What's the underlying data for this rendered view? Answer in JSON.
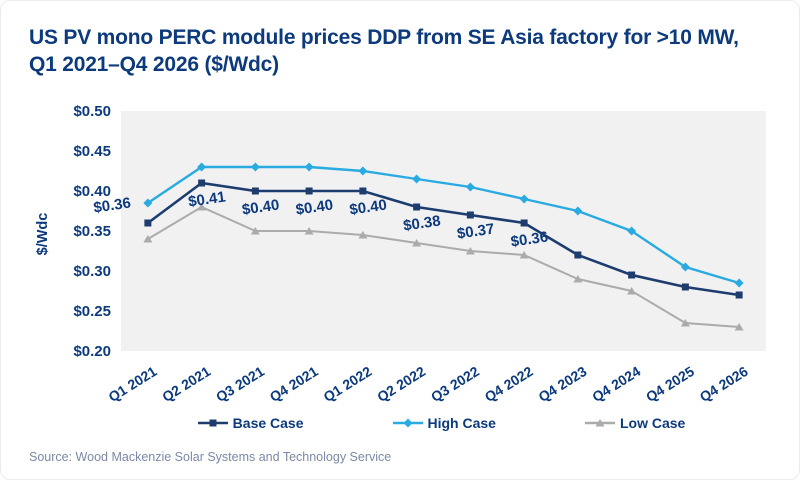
{
  "chart_data": {
    "type": "line",
    "title": "US PV mono PERC module prices DDP from SE Asia factory for >10 MW, Q1 2021–Q4 2026 ($/Wdc)",
    "ylabel": "$/Wdc",
    "source": "Source: Wood Mackenzie Solar Systems and Technology Service",
    "categories": [
      "Q1 2021",
      "Q2 2021",
      "Q3 2021",
      "Q4 2021",
      "Q1 2022",
      "Q2 2022",
      "Q3 2022",
      "Q4 2022",
      "Q4 2023",
      "Q4 2024",
      "Q4 2025",
      "Q4 2026"
    ],
    "y_ticks": [
      "$0.50",
      "$0.45",
      "$0.40",
      "$0.35",
      "$0.30",
      "$0.25",
      "$0.20"
    ],
    "ylim": [
      0.2,
      0.5
    ],
    "grid": false,
    "legend_position": "bottom",
    "plot_bg": "#f1f1f2",
    "series": [
      {
        "name": "Base Case",
        "color": "#1e3d6f",
        "marker": "square",
        "values": [
          0.36,
          0.41,
          0.4,
          0.4,
          0.4,
          0.38,
          0.37,
          0.36,
          0.32,
          0.295,
          0.28,
          0.27
        ],
        "data_labels": [
          "$0.36",
          "$0.41",
          "$0.40",
          "$0.40",
          "$0.40",
          "$0.38",
          "$0.37",
          "$0.36",
          null,
          null,
          null,
          null
        ]
      },
      {
        "name": "High Case",
        "color": "#29abe2",
        "marker": "diamond",
        "values": [
          0.385,
          0.43,
          0.43,
          0.43,
          0.425,
          0.415,
          0.405,
          0.39,
          0.375,
          0.35,
          0.305,
          0.285
        ],
        "data_labels": []
      },
      {
        "name": "Low Case",
        "color": "#ababab",
        "marker": "triangle",
        "values": [
          0.34,
          0.38,
          0.35,
          0.35,
          0.345,
          0.335,
          0.325,
          0.32,
          0.29,
          0.275,
          0.235,
          0.23
        ],
        "data_labels": []
      }
    ]
  },
  "colors": {
    "title_text": "#0d3a7d",
    "axis_text": "#0d3a7d",
    "data_label_text": "#0d3a7d",
    "source_text": "#7b89a4",
    "plot_background": "#f1f1f2",
    "page_background": "#ffffff"
  }
}
